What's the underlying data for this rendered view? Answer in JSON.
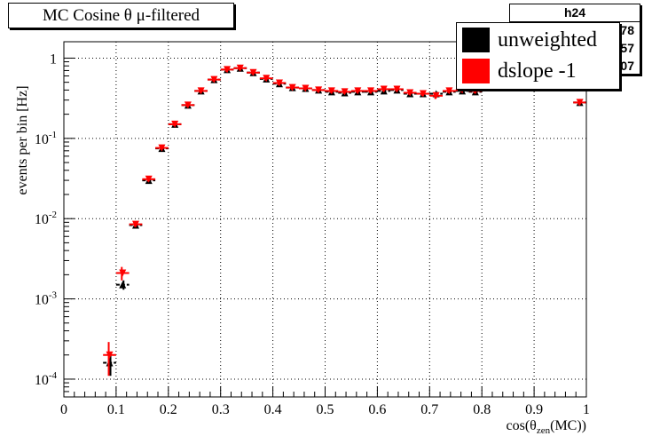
{
  "title": "MC Cosine θ μ-filtered",
  "stats": {
    "name": "h24",
    "rows": [
      "78",
      "57",
      "07"
    ]
  },
  "legend": [
    {
      "label": "unweighted",
      "color": "#000000"
    },
    {
      "label": "dslope -1",
      "color": "#ff0000"
    }
  ],
  "chart_data": {
    "type": "scatter",
    "title": "MC Cosine θ μ-filtered",
    "xlabel": "cos(θzen(MC))",
    "xlabel_main": "cos(θ",
    "xlabel_sub": "zen",
    "xlabel_end": "(MC))",
    "ylabel": "events per bin [Hz]",
    "xlim": [
      0,
      1
    ],
    "ylim": [
      6e-05,
      1.6
    ],
    "yscale": "log",
    "grid": true,
    "xticks": [
      0,
      0.1,
      0.2,
      0.3,
      0.4,
      0.5,
      0.6,
      0.7,
      0.8,
      0.9,
      1
    ],
    "xtick_labels": [
      "0",
      "0.1",
      "0.2",
      "0.3",
      "0.4",
      "0.5",
      "0.6",
      "0.7",
      "0.8",
      "0.9",
      "1"
    ],
    "yticks": [
      {
        "value": 0.0001,
        "base": "10",
        "exp": "-4"
      },
      {
        "value": 0.001,
        "base": "10",
        "exp": "-3"
      },
      {
        "value": 0.01,
        "base": "10",
        "exp": "-2"
      },
      {
        "value": 0.1,
        "base": "10",
        "exp": "-1"
      },
      {
        "value": 1,
        "base": "1",
        "exp": ""
      }
    ],
    "bin_half_width": 0.0125,
    "series": [
      {
        "name": "unweighted",
        "color": "#000000",
        "marker": "triangle",
        "x": [
          0.0875,
          0.1125,
          0.1375,
          0.1625,
          0.1875,
          0.2125,
          0.2375,
          0.2625,
          0.2875,
          0.3125,
          0.3375,
          0.3625,
          0.3875,
          0.4125,
          0.4375,
          0.4625,
          0.4875,
          0.5125,
          0.5375,
          0.5625,
          0.5875,
          0.6125,
          0.6375,
          0.6625,
          0.6875,
          0.7125,
          0.7375,
          0.7625,
          0.7875,
          0.9875
        ],
        "y": [
          0.00016,
          0.0015,
          0.0083,
          0.03,
          0.075,
          0.15,
          0.26,
          0.39,
          0.54,
          0.72,
          0.75,
          0.66,
          0.55,
          0.48,
          0.43,
          0.42,
          0.4,
          0.38,
          0.37,
          0.38,
          0.38,
          0.39,
          0.4,
          0.36,
          0.36,
          0.36,
          0.38,
          0.39,
          0.38,
          0.28
        ],
        "err_lo": [
          5e-05,
          0.0002,
          0.0005,
          0.002,
          0.004,
          0.008,
          0.014,
          0.02,
          0.03,
          0.04,
          0.04,
          0.035,
          0.03,
          0.025,
          0.022,
          0.02,
          0.02,
          0.02,
          0.02,
          0.02,
          0.02,
          0.02,
          0.02,
          0.02,
          0.02,
          0.02,
          0.02,
          0.02,
          0.02,
          0.02
        ],
        "err_hi": [
          5e-05,
          0.0002,
          0.0005,
          0.002,
          0.004,
          0.008,
          0.014,
          0.02,
          0.03,
          0.04,
          0.04,
          0.035,
          0.03,
          0.025,
          0.022,
          0.02,
          0.02,
          0.02,
          0.02,
          0.02,
          0.02,
          0.02,
          0.02,
          0.02,
          0.02,
          0.02,
          0.02,
          0.02,
          0.02,
          0.02
        ]
      },
      {
        "name": "dslope -1",
        "color": "#ff0000",
        "marker": "triangle-down",
        "x": [
          0.0875,
          0.1125,
          0.1375,
          0.1625,
          0.1875,
          0.2125,
          0.2375,
          0.2625,
          0.2875,
          0.3125,
          0.3375,
          0.3625,
          0.3875,
          0.4125,
          0.4375,
          0.4625,
          0.4875,
          0.5125,
          0.5375,
          0.5625,
          0.5875,
          0.6125,
          0.6375,
          0.6625,
          0.6875,
          0.7125,
          0.7375,
          0.7625,
          0.7875,
          0.9875
        ],
        "y": [
          0.0002,
          0.0021,
          0.0085,
          0.031,
          0.076,
          0.15,
          0.26,
          0.39,
          0.54,
          0.72,
          0.75,
          0.66,
          0.56,
          0.49,
          0.43,
          0.42,
          0.4,
          0.39,
          0.38,
          0.39,
          0.39,
          0.41,
          0.41,
          0.37,
          0.36,
          0.34,
          0.39,
          0.4,
          0.39,
          0.28
        ],
        "err_lo": [
          9e-05,
          0.0004,
          0.0006,
          0.002,
          0.004,
          0.008,
          0.015,
          0.022,
          0.03,
          0.045,
          0.045,
          0.04,
          0.035,
          0.03,
          0.026,
          0.024,
          0.022,
          0.022,
          0.022,
          0.022,
          0.022,
          0.024,
          0.024,
          0.022,
          0.022,
          0.03,
          0.024,
          0.024,
          0.024,
          0.02
        ],
        "err_hi": [
          9e-05,
          0.0004,
          0.0006,
          0.002,
          0.004,
          0.008,
          0.015,
          0.022,
          0.03,
          0.045,
          0.045,
          0.04,
          0.035,
          0.03,
          0.026,
          0.024,
          0.022,
          0.022,
          0.022,
          0.022,
          0.022,
          0.024,
          0.024,
          0.022,
          0.022,
          0.03,
          0.024,
          0.024,
          0.024,
          0.02
        ]
      }
    ]
  }
}
